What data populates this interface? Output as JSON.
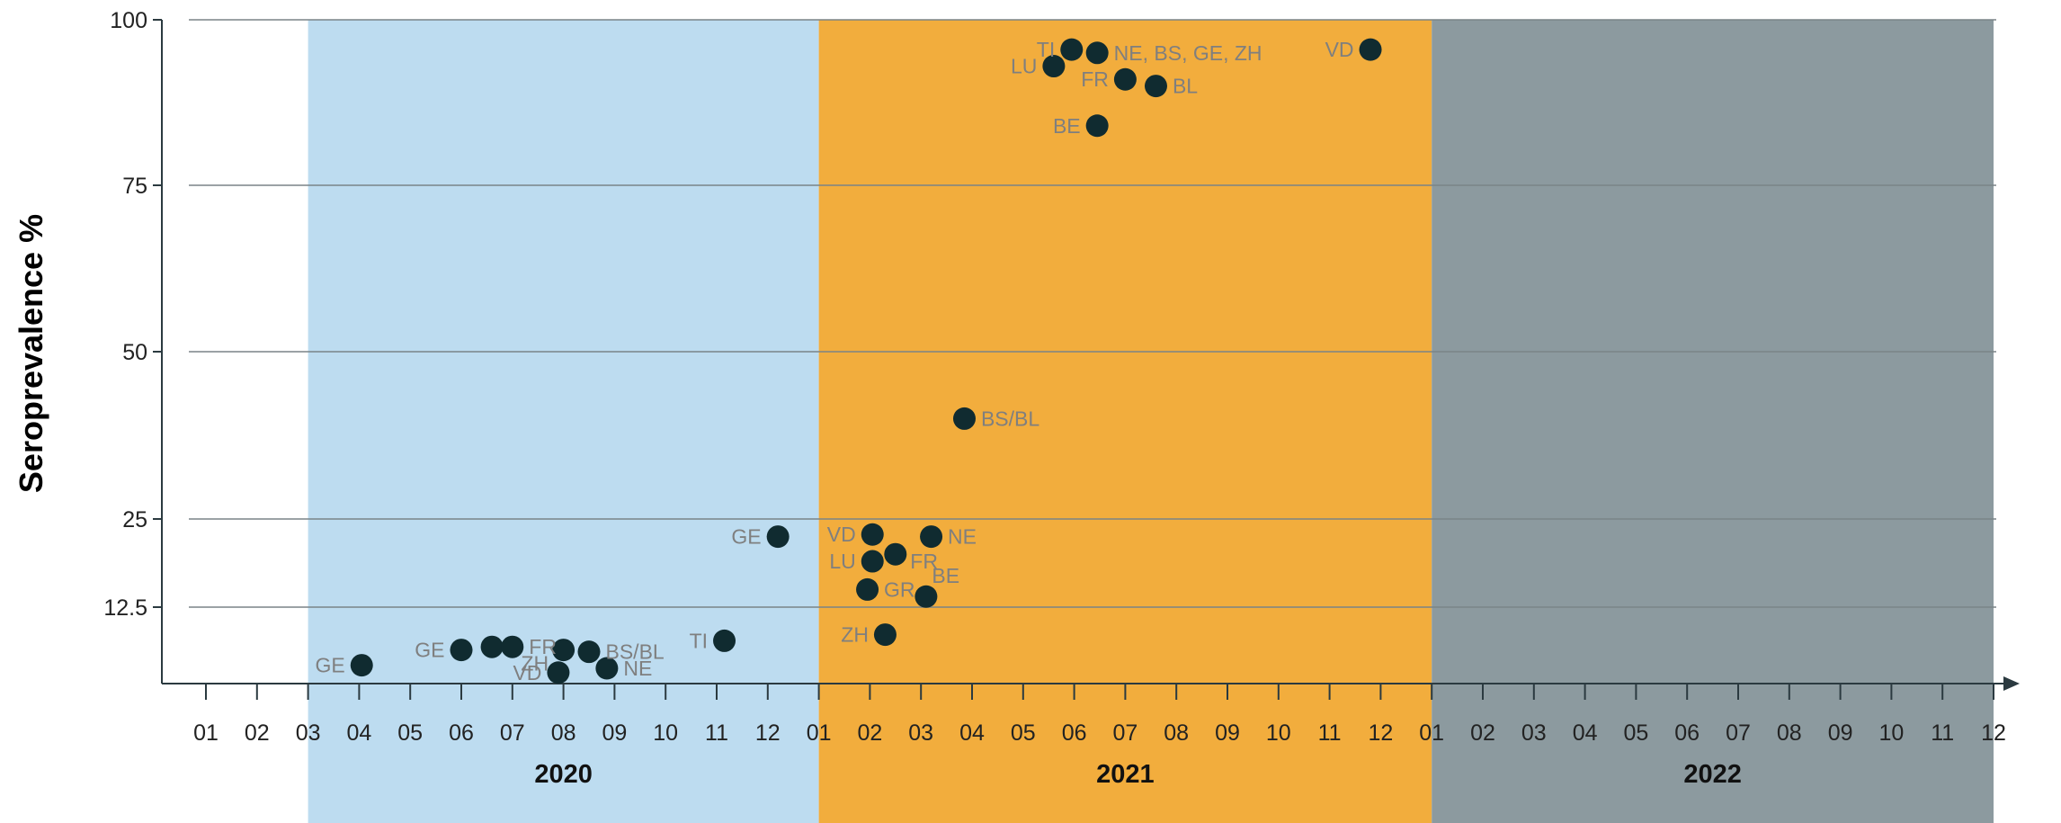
{
  "chart_data": {
    "type": "scatter",
    "ylabel": "Seroprevalence %",
    "y_ticks": [
      12.5,
      25,
      50,
      75,
      100
    ],
    "y_tick_labels": [
      "12.5",
      "25",
      "50",
      "75",
      "100"
    ],
    "ylim": [
      0,
      100
    ],
    "y_scale": "piecewise-linear",
    "x_unit": "month index from 01/2020 (1 = January 2020)",
    "x_tick_labels": [
      "01",
      "02",
      "03",
      "04",
      "05",
      "06",
      "07",
      "08",
      "09",
      "10",
      "11",
      "12",
      "01",
      "02",
      "03",
      "04",
      "05",
      "06",
      "07",
      "08",
      "09",
      "10",
      "11",
      "12",
      "01",
      "02",
      "03",
      "04",
      "05",
      "06",
      "07",
      "08",
      "09",
      "10",
      "11",
      "12"
    ],
    "grid": "horizontal",
    "periods": [
      {
        "label": "2020",
        "start": 3,
        "end": 13,
        "color": "#bddcf0"
      },
      {
        "label": "2021",
        "start": 13,
        "end": 25,
        "color": "#f2ad3d"
      },
      {
        "label": "2022",
        "start": 25,
        "end": 36,
        "color": "#8c9a9f"
      }
    ],
    "point_color": "#102b30",
    "points": [
      {
        "x": 4.05,
        "y": 3,
        "label": "GE",
        "pos": "left"
      },
      {
        "x": 6.0,
        "y": 5.5,
        "label": "GE",
        "pos": "left"
      },
      {
        "x": 6.6,
        "y": 6,
        "label": "",
        "pos": "none"
      },
      {
        "x": 7.0,
        "y": 6,
        "label": "FR",
        "pos": "right"
      },
      {
        "x": 7.9,
        "y": 1.8,
        "label": "VD",
        "pos": "left"
      },
      {
        "x": 8.0,
        "y": 5.5,
        "label": "ZH",
        "pos": "left-low"
      },
      {
        "x": 8.5,
        "y": 5.2,
        "label": "BS/BL",
        "pos": "right"
      },
      {
        "x": 8.85,
        "y": 2.5,
        "label": "NE",
        "pos": "right"
      },
      {
        "x": 11.15,
        "y": 7,
        "label": "TI",
        "pos": "left"
      },
      {
        "x": 12.2,
        "y": 22.5,
        "label": "GE",
        "pos": "left"
      },
      {
        "x": 13.95,
        "y": 15,
        "label": "GR",
        "pos": "right"
      },
      {
        "x": 14.05,
        "y": 22.8,
        "label": "VD",
        "pos": "left"
      },
      {
        "x": 14.05,
        "y": 19,
        "label": "LU",
        "pos": "left"
      },
      {
        "x": 14.3,
        "y": 8,
        "label": "ZH",
        "pos": "left"
      },
      {
        "x": 14.5,
        "y": 20,
        "label": "FR",
        "pos": "right-low"
      },
      {
        "x": 15.1,
        "y": 14,
        "label": "BE",
        "pos": "right-up"
      },
      {
        "x": 15.2,
        "y": 22.5,
        "label": "NE",
        "pos": "right"
      },
      {
        "x": 15.85,
        "y": 40,
        "label": "BS/BL",
        "pos": "right"
      },
      {
        "x": 17.6,
        "y": 93,
        "label": "LU",
        "pos": "left"
      },
      {
        "x": 17.95,
        "y": 95.5,
        "label": "TI",
        "pos": "left"
      },
      {
        "x": 18.45,
        "y": 95,
        "label": "NE, BS, GE, ZH",
        "pos": "right"
      },
      {
        "x": 18.45,
        "y": 84,
        "label": "BE",
        "pos": "left"
      },
      {
        "x": 19.0,
        "y": 91,
        "label": "FR",
        "pos": "left"
      },
      {
        "x": 19.6,
        "y": 90,
        "label": "BL",
        "pos": "right"
      },
      {
        "x": 23.8,
        "y": 95.5,
        "label": "VD",
        "pos": "left"
      }
    ]
  }
}
